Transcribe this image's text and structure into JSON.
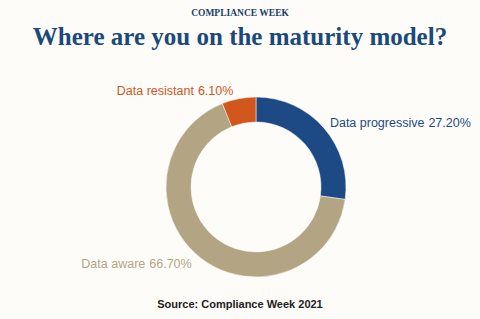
{
  "chart_data": {
    "type": "donut",
    "title": "Where are you on the maturity model?",
    "annotations": [
      "COMPLIANCE WEEK",
      "Source: Compliance Week 2021"
    ],
    "categories": [
      "Data progressive",
      "Data aware",
      "Data resistant"
    ],
    "values": [
      27.2,
      66.7,
      6.1
    ],
    "value_labels": [
      "27.20%",
      "66.70%",
      "6.10%"
    ],
    "colors": [
      "#1d4a84",
      "#b3a584",
      "#d2571c"
    ],
    "data_labels": true
  }
}
